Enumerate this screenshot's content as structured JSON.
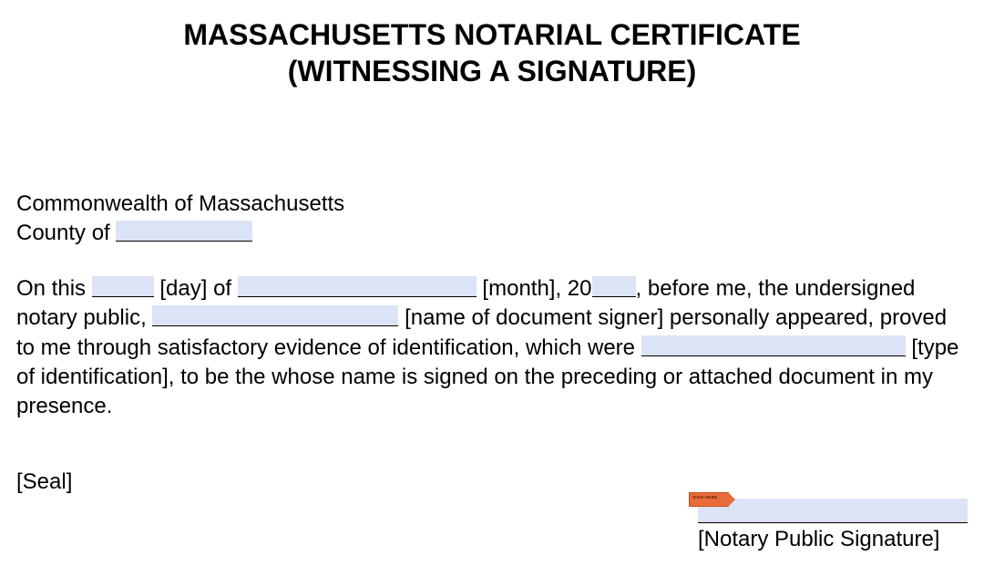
{
  "title_line1": "MASSACHUSETTS NOTARIAL CERTIFICATE",
  "title_line2": "(WITNESSING A SIGNATURE)",
  "venue": {
    "state_line": "Commonwealth of Massachusetts",
    "county_prefix": "County of "
  },
  "body": {
    "t1": "On this ",
    "t2": " [day] of ",
    "t3": " [month], 20",
    "t4": ", before me, the undersigned notary public, ",
    "t5": " [name of document signer] personally appeared, proved to me through satisfactory evidence of identification, which were ",
    "t6": " [type of identification], to be the whose name is signed on the preceding or attached document in my presence."
  },
  "seal_label": "[Seal]",
  "signature_label": "[Notary Public Signature]",
  "sign_tab_text": "SIGN HERE",
  "blanks": {
    "county_width": 150,
    "day_width": 68,
    "month_width": 262,
    "year_width": 48,
    "name_width": 270,
    "idtype_width": 290
  },
  "colors": {
    "blank_fill": "#dde3f7",
    "text": "#000000",
    "tab_fill": "#e86b3a",
    "tab_border": "#c24f20"
  }
}
